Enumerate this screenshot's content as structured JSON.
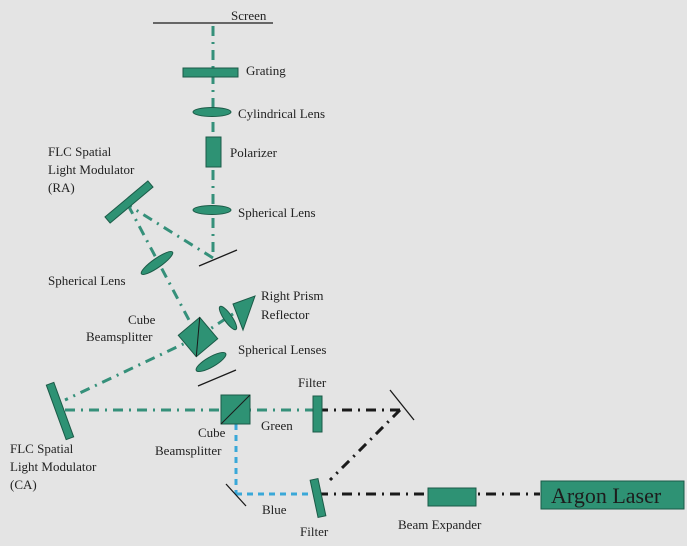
{
  "labels": {
    "screen": "Screen",
    "grating": "Grating",
    "cylindrical_lens": "Cylindrical Lens",
    "polarizer": "Polarizer",
    "flc_ra_line1": "FLC Spatial",
    "flc_ra_line2": "Light Modulator",
    "flc_ra_line3": "(RA)",
    "spherical_lens_top": "Spherical Lens",
    "spherical_lens_left": "Spherical Lens",
    "right_prism_line1": "Right Prism",
    "right_prism_line2": "Reflector",
    "cube_upper_line1": "Cube",
    "cube_upper_line2": "Beamsplitter",
    "spherical_lenses": "Spherical Lenses",
    "filter_green": "Filter",
    "green": "Green",
    "cube_lower_line1": "Cube",
    "cube_lower_line2": "Beamsplitter",
    "flc_ca_line1": "FLC Spatial",
    "flc_ca_line2": "Light Modulator",
    "flc_ca_line3": "(CA)",
    "blue": "Blue",
    "filter_blue": "Filter",
    "beam_expander": "Beam Expander",
    "argon_laser": "Argon Laser"
  },
  "colors": {
    "background": "#e4e4e4",
    "optic": "#2e9274",
    "green_beam": "#35907a",
    "blue_beam": "#3aa8d8",
    "black_beam": "#1a1a1a"
  }
}
